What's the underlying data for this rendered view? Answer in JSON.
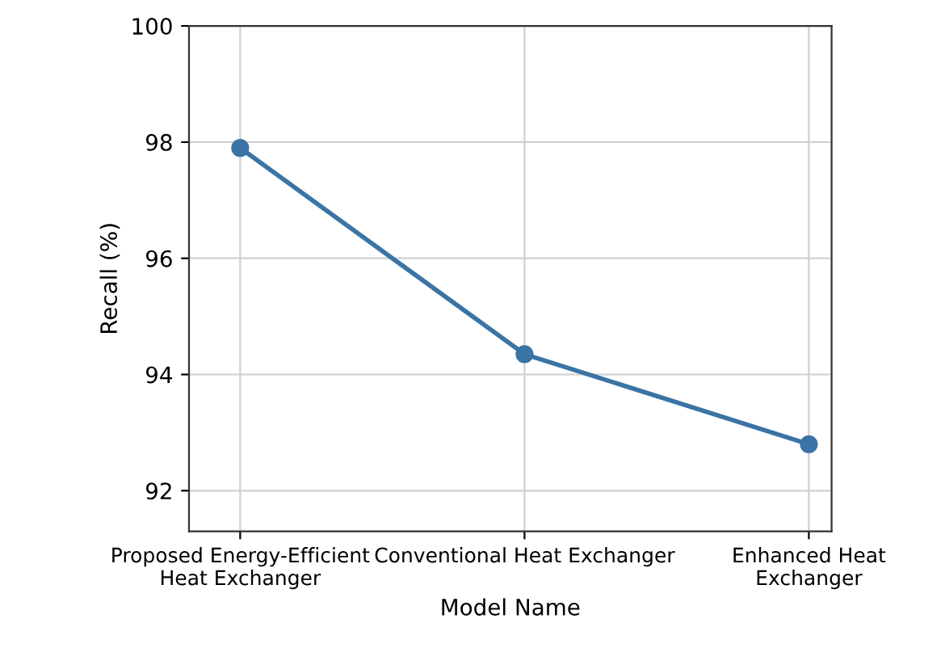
{
  "chart_data": {
    "type": "line",
    "xlabel": "Model Name",
    "ylabel": "Recall (%)",
    "categories": [
      "Proposed Energy-Efficient\nHeat Exchanger",
      "Conventional Heat Exchanger",
      "Enhanced Heat\nExchanger"
    ],
    "series": [
      {
        "color": "#3a74a5",
        "values": [
          97.9,
          94.35,
          92.8
        ]
      }
    ],
    "ylim": [
      91.3,
      100
    ],
    "yticks": [
      92,
      94,
      96,
      98,
      100
    ],
    "grid": true,
    "marker": "circle",
    "line_style": "solid"
  }
}
